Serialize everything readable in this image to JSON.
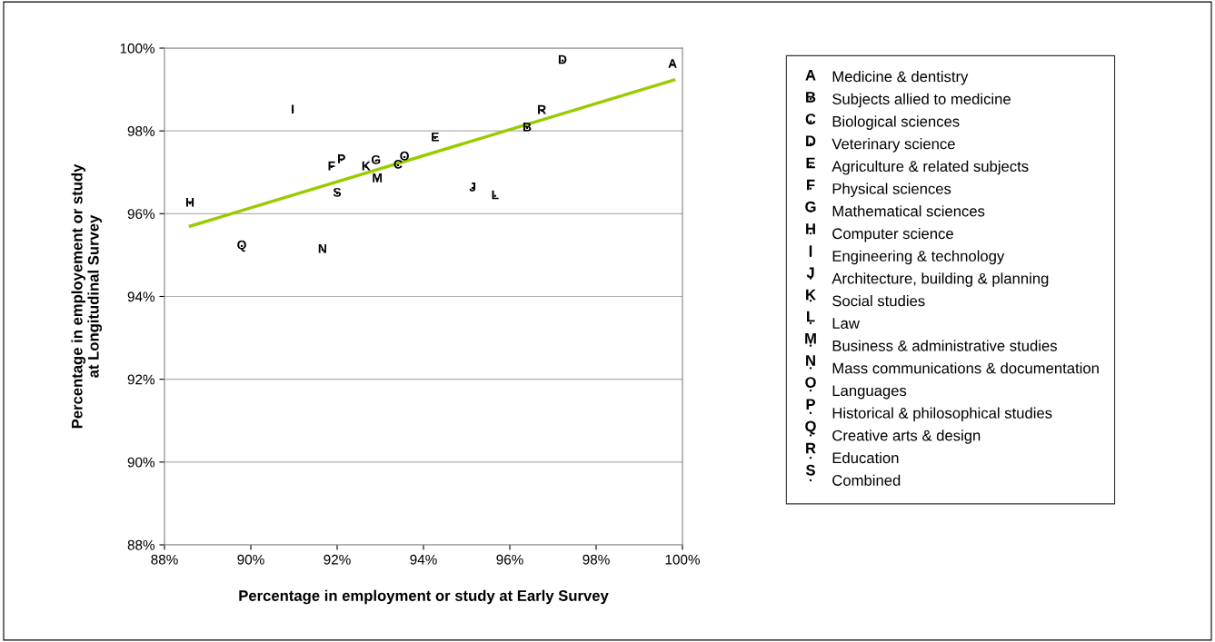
{
  "chart_data": {
    "type": "scatter",
    "xlabel": "Percentage in employment or study at Early Survey",
    "ylabel": "Percentage in employement or study\nat Longitudinal Survey",
    "xlim": [
      88,
      100
    ],
    "ylim": [
      88,
      100
    ],
    "xticks": [
      {
        "value": 88,
        "label": "88%"
      },
      {
        "value": 90,
        "label": "90%"
      },
      {
        "value": 92,
        "label": "92%"
      },
      {
        "value": 94,
        "label": "94%"
      },
      {
        "value": 96,
        "label": "96%"
      },
      {
        "value": 98,
        "label": "98%"
      },
      {
        "value": 100,
        "label": "100%"
      }
    ],
    "yticks": [
      {
        "value": 88,
        "label": "88%"
      },
      {
        "value": 90,
        "label": "90%"
      },
      {
        "value": 92,
        "label": "92%"
      },
      {
        "value": 94,
        "label": "94%"
      },
      {
        "value": 96,
        "label": "96%"
      },
      {
        "value": 98,
        "label": "98%"
      },
      {
        "value": 100,
        "label": "100%"
      }
    ],
    "grid": "y",
    "legend": "right",
    "marker": "none",
    "series": [
      {
        "name": "Medicine & dentistry",
        "color": "#000000",
        "x": [
          99.77
        ],
        "values": [
          99.6
        ],
        "value_labels": [
          "A"
        ]
      },
      {
        "name": "Subjects allied to medicine",
        "color": "#000000",
        "x": [
          96.4
        ],
        "values": [
          98.07
        ],
        "value_labels": [
          "B"
        ]
      },
      {
        "name": "Biological sciences",
        "color": "#000000",
        "x": [
          93.41
        ],
        "values": [
          97.17
        ],
        "value_labels": [
          "C"
        ]
      },
      {
        "name": "Veterinary science",
        "color": "#000000",
        "x": [
          97.22
        ],
        "values": [
          99.7
        ],
        "value_labels": [
          "D"
        ]
      },
      {
        "name": "Agriculture & related subjects",
        "color": "#000000",
        "x": [
          94.27
        ],
        "values": [
          97.83
        ],
        "value_labels": [
          "E"
        ]
      },
      {
        "name": "Physical sciences",
        "color": "#000000",
        "x": [
          91.87
        ],
        "values": [
          97.13
        ],
        "value_labels": [
          "F"
        ]
      },
      {
        "name": "Mathematical sciences",
        "color": "#000000",
        "x": [
          92.9
        ],
        "values": [
          97.28
        ],
        "value_labels": [
          "G"
        ]
      },
      {
        "name": "Computer science",
        "color": "#000000",
        "x": [
          88.59
        ],
        "values": [
          96.25
        ],
        "value_labels": [
          "H"
        ]
      },
      {
        "name": "Engineering & technology",
        "color": "#000000",
        "x": [
          90.97
        ],
        "values": [
          98.5
        ],
        "value_labels": [
          "I"
        ]
      },
      {
        "name": "Architecture, building & planning",
        "color": "#000000",
        "x": [
          95.14
        ],
        "values": [
          96.62
        ],
        "value_labels": [
          "J"
        ]
      },
      {
        "name": "Social studies",
        "color": "#000000",
        "x": [
          92.67
        ],
        "values": [
          97.13
        ],
        "value_labels": [
          "K"
        ]
      },
      {
        "name": "Law",
        "color": "#000000",
        "x": [
          95.66
        ],
        "values": [
          96.43
        ],
        "value_labels": [
          "L"
        ]
      },
      {
        "name": "Business & administrative studies",
        "color": "#000000",
        "x": [
          92.93
        ],
        "values": [
          96.84
        ],
        "value_labels": [
          "M"
        ]
      },
      {
        "name": "Mass communications & documentation",
        "color": "#000000",
        "x": [
          91.66
        ],
        "values": [
          95.13
        ],
        "value_labels": [
          "N"
        ]
      },
      {
        "name": "Languages",
        "color": "#000000",
        "x": [
          93.56
        ],
        "values": [
          97.37
        ],
        "value_labels": [
          "O"
        ]
      },
      {
        "name": "Historical & philosophical studies",
        "color": "#000000",
        "x": [
          92.1
        ],
        "values": [
          97.3
        ],
        "value_labels": [
          "P"
        ]
      },
      {
        "name": "Creative arts & design",
        "color": "#000000",
        "x": [
          89.79
        ],
        "values": [
          95.22
        ],
        "value_labels": [
          "Q"
        ]
      },
      {
        "name": "Education",
        "color": "#000000",
        "x": [
          96.74
        ],
        "values": [
          98.49
        ],
        "value_labels": [
          "R"
        ]
      },
      {
        "name": "Combined",
        "color": "#000000",
        "x": [
          92.0
        ],
        "values": [
          96.49
        ],
        "value_labels": [
          "S"
        ]
      },
      {
        "type": "line",
        "color": "#99cc00",
        "x": [
          88.6,
          99.8
        ],
        "values": [
          95.7,
          99.23
        ]
      }
    ]
  }
}
